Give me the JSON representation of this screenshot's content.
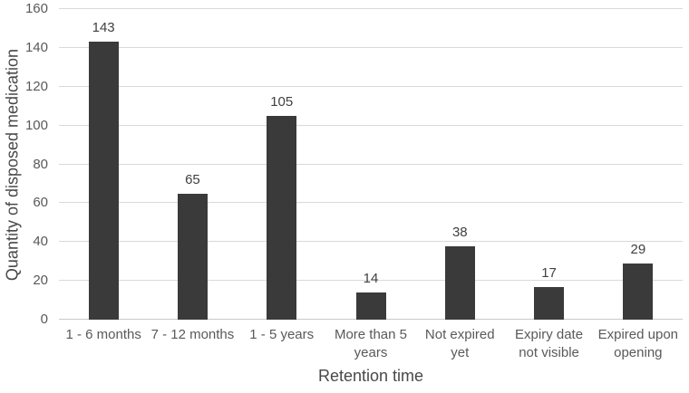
{
  "chart_data": {
    "type": "bar",
    "categories": [
      "1 - 6 months",
      "7 - 12 months",
      "1 - 5 years",
      "More than 5 years",
      "Not expired yet",
      "Expiry date not visible",
      "Expired upon opening"
    ],
    "values": [
      143,
      65,
      105,
      14,
      38,
      17,
      29
    ],
    "title": "",
    "xlabel": "Retention time",
    "ylabel": "Quantity of disposed medication",
    "ylim": [
      0,
      160
    ],
    "yticks": [
      0,
      20,
      40,
      60,
      80,
      100,
      120,
      140,
      160
    ],
    "grid": true,
    "legend": false,
    "bar_color": "#3a3a3a",
    "gridline_color": "#d9d9d9",
    "axis_line_color": "#c9c9c9",
    "tick_label_color": "#595959",
    "data_label_color": "#404040",
    "axis_title_color": "#484848",
    "background_color": "#ffffff"
  }
}
